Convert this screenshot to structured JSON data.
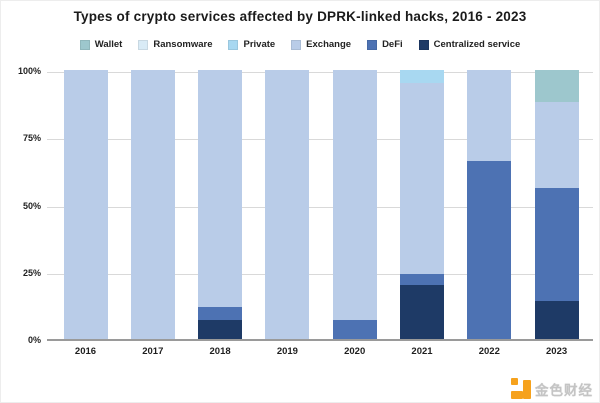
{
  "chart_data": {
    "type": "bar",
    "stacked": true,
    "title": "Types of crypto services affected by DPRK-linked hacks, 2016 - 2023",
    "categories": [
      "2016",
      "2017",
      "2018",
      "2019",
      "2020",
      "2021",
      "2022",
      "2023"
    ],
    "series": [
      {
        "name": "Wallet",
        "color": "#9dc7cd",
        "values": [
          0,
          0,
          0,
          0,
          0,
          0,
          0,
          12
        ]
      },
      {
        "name": "Ransomware",
        "color": "#d9ebf6",
        "values": [
          0,
          0,
          0,
          0,
          0,
          0,
          0,
          0
        ]
      },
      {
        "name": "Private",
        "color": "#a8d8f1",
        "values": [
          0,
          0,
          0,
          0,
          0,
          5,
          0,
          0
        ]
      },
      {
        "name": "Exchange",
        "color": "#b9cce8",
        "values": [
          100,
          100,
          88,
          100,
          93,
          71,
          34,
          32
        ]
      },
      {
        "name": "DeFi",
        "color": "#4d72b3",
        "values": [
          0,
          0,
          5,
          0,
          7,
          4,
          66,
          42
        ]
      },
      {
        "name": "Centralized service",
        "color": "#1e3a66",
        "values": [
          0,
          0,
          7,
          0,
          0,
          20,
          0,
          14
        ]
      }
    ],
    "stack_order_bottom_to_top": [
      "Centralized service",
      "DeFi",
      "Exchange",
      "Private",
      "Ransomware",
      "Wallet"
    ],
    "xlabel": "",
    "ylabel": "",
    "ylim": [
      0,
      100
    ],
    "y_ticks": [
      {
        "value": 0,
        "label": "0%"
      },
      {
        "value": 25,
        "label": "25%"
      },
      {
        "value": 50,
        "label": "50%"
      },
      {
        "value": 75,
        "label": "75%"
      },
      {
        "value": 100,
        "label": "100%"
      }
    ],
    "grid": "horizontal",
    "legend_position": "top"
  },
  "colors": {
    "background": "#ffffff",
    "gridline": "#d9d9d9",
    "axis_line": "#9a9a9a",
    "title_text": "#1b1b1b",
    "tick_text": "#1f1f1f",
    "watermark_orange": "#f6a21d",
    "watermark_text": "#c4c4c4"
  },
  "watermark": {
    "text": "金色财经"
  }
}
